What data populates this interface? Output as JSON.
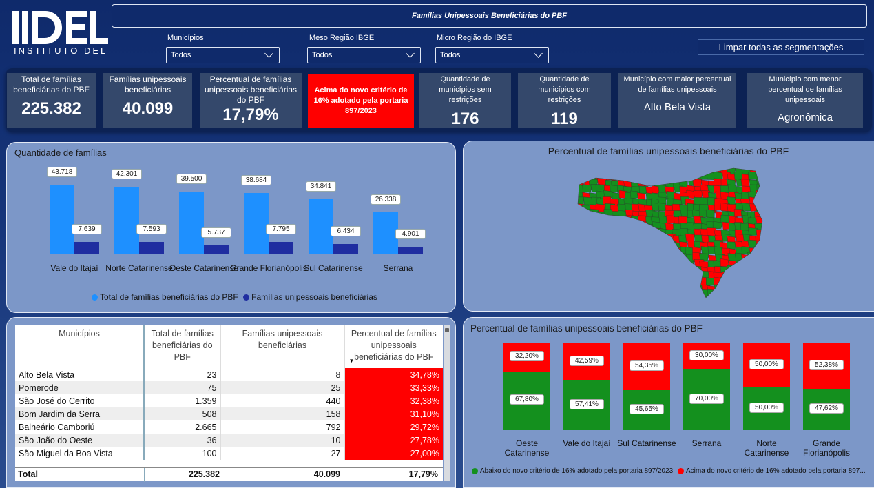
{
  "header": {
    "logo_text": "IDEL",
    "logo_subtitle": "INSTITUTO DEL",
    "title": "Famílias Unipessoais Beneficiárias do PBF",
    "filters": [
      {
        "label": "Municípios",
        "value": "Todos"
      },
      {
        "label": "Meso Região IBGE",
        "value": "Todos"
      },
      {
        "label": "Micro Região do IBGE",
        "value": "Todos"
      }
    ],
    "clear_button": "Limpar todas as segmentações"
  },
  "kpis": {
    "total_families_label": "Total de famílias beneficiárias do PBF",
    "total_families_value": "225.382",
    "unipessoais_label": "Famílias unipessoais beneficiárias",
    "unipessoais_value": "40.099",
    "percent_label": "Percentual de famílias unipessoais beneficiárias do PBF",
    "percent_value": "17,79%",
    "alert_text": "Acima do novo critério de 16% adotado pela portaria 897/2023",
    "sem_restricoes_label": "Quantidade de municípios sem restrições",
    "sem_restricoes_value": "176",
    "com_restricoes_label": "Quantidade de municípios com restrições",
    "com_restricoes_value": "119",
    "maior_label": "Município com maior percentual de famílias unipessoais",
    "maior_value": "Alto Bela Vista",
    "menor_label": "Município com menor percentual de famílias unipessoais",
    "menor_value": "Agronômica"
  },
  "colors": {
    "total_series": "#1e90ff",
    "unipessoal_series": "#1f2da0",
    "below": "#14901e",
    "above": "#ff0000"
  },
  "chart_data": [
    {
      "type": "bar",
      "title": "Quantidade de famílias",
      "categories": [
        "Vale do Itajaí",
        "Norte Catarinense",
        "Oeste Catarinense",
        "Grande Florianópolis",
        "Sul Catarinense",
        "Serrana"
      ],
      "series": [
        {
          "name": "Total de famílias beneficiárias do PBF",
          "values": [
            43718,
            42301,
            39500,
            38684,
            34841,
            26338
          ],
          "labels": [
            "43.718",
            "42.301",
            "39.500",
            "38.684",
            "34.841",
            "26.338"
          ]
        },
        {
          "name": "Famílias unipessoais beneficiárias",
          "values": [
            7639,
            7593,
            5737,
            7795,
            6434,
            4901
          ],
          "labels": [
            "7.639",
            "7.593",
            "5.737",
            "7.795",
            "6.434",
            "4.901"
          ]
        }
      ],
      "legend": "bottom"
    },
    {
      "type": "bar",
      "stacked": true,
      "percent": true,
      "title": "Percentual de famílias unipessoais beneficiárias do PBF",
      "categories": [
        "Oeste Catarinense",
        "Vale do Itajaí",
        "Sul Catarinense",
        "Serrana",
        "Norte Catarinense",
        "Grande Florianópolis"
      ],
      "series": [
        {
          "name": "Abaixo do novo critério de 16% adotado pela portaria 897/2023",
          "values": [
            67.8,
            57.41,
            45.65,
            70.0,
            50.0,
            47.62
          ],
          "labels": [
            "67,80%",
            "57,41%",
            "45,65%",
            "70,00%",
            "50,00%",
            "47,62%"
          ]
        },
        {
          "name": "Acima do novo critério de 16% adotado pela portaria 897...",
          "values": [
            32.2,
            42.59,
            54.35,
            30.0,
            50.0,
            52.38
          ],
          "labels": [
            "32,20%",
            "42,59%",
            "54,35%",
            "30,00%",
            "50,00%",
            "52,38%"
          ]
        }
      ],
      "legend": "bottom"
    }
  ],
  "map": {
    "title": "Percentual de famílias unipessoais beneficiárias do PBF"
  },
  "table": {
    "columns": [
      "Municípios",
      "Total de famílias beneficiárias do PBF",
      "Famílias unipessoais beneficiárias",
      "Percentual de famílias unipessoais beneficiárias do PBF"
    ],
    "rows": [
      [
        "Alto Bela Vista",
        "23",
        "8",
        "34,78%"
      ],
      [
        "Pomerode",
        "75",
        "25",
        "33,33%"
      ],
      [
        "São José do Cerrito",
        "1.359",
        "440",
        "32,38%"
      ],
      [
        "Bom Jardim da Serra",
        "508",
        "158",
        "31,10%"
      ],
      [
        "Balneário Camboriú",
        "2.665",
        "792",
        "29,72%"
      ],
      [
        "São João do Oeste",
        "36",
        "10",
        "27,78%"
      ],
      [
        "São Miguel da Boa Vista",
        "100",
        "27",
        "27,00%"
      ]
    ],
    "total": [
      "Total",
      "225.382",
      "40.099",
      "17,79%"
    ]
  }
}
